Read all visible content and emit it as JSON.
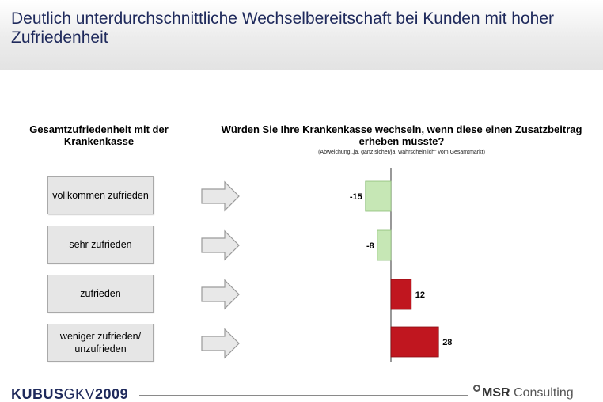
{
  "header": {
    "title": "Deutlich unterdurchschnittliche Wechselbereitschaft bei Kunden mit hoher Zufriedenheit"
  },
  "left_heading": "Gesamtzufriedenheit mit der Krankenkasse",
  "right_heading": "Würden Sie Ihre Krankenkasse wechseln, wenn diese einen Zusatzbeitrag erheben müsste?",
  "right_subheading": "(Abweichung „ja, ganz sicher/ja, wahrscheinlich“ vom Gesamtmarkt)",
  "colors": {
    "negative": "#c6e7b5",
    "negative_border": "#8dbf78",
    "positive": "#c0161f",
    "positive_border": "#8a0d12",
    "title": "#1f2a5c"
  },
  "chart_data": {
    "type": "bar",
    "orientation": "horizontal",
    "categories": [
      "vollkommen zufrieden",
      "sehr zufrieden",
      "zufrieden",
      "weniger zufrieden/ unzufrieden"
    ],
    "values": [
      -15,
      -8,
      12,
      28
    ],
    "value_labels": [
      "-15",
      "-8",
      "12",
      "28"
    ],
    "title": "",
    "xlabel": "",
    "ylabel": "",
    "grid": false,
    "legend": "none"
  },
  "footer": {
    "brand_part1": "KUBUS",
    "brand_part2": "GKV",
    "brand_part3": "2009",
    "logo_msr": "MSR",
    "logo_consulting": "Consulting"
  }
}
